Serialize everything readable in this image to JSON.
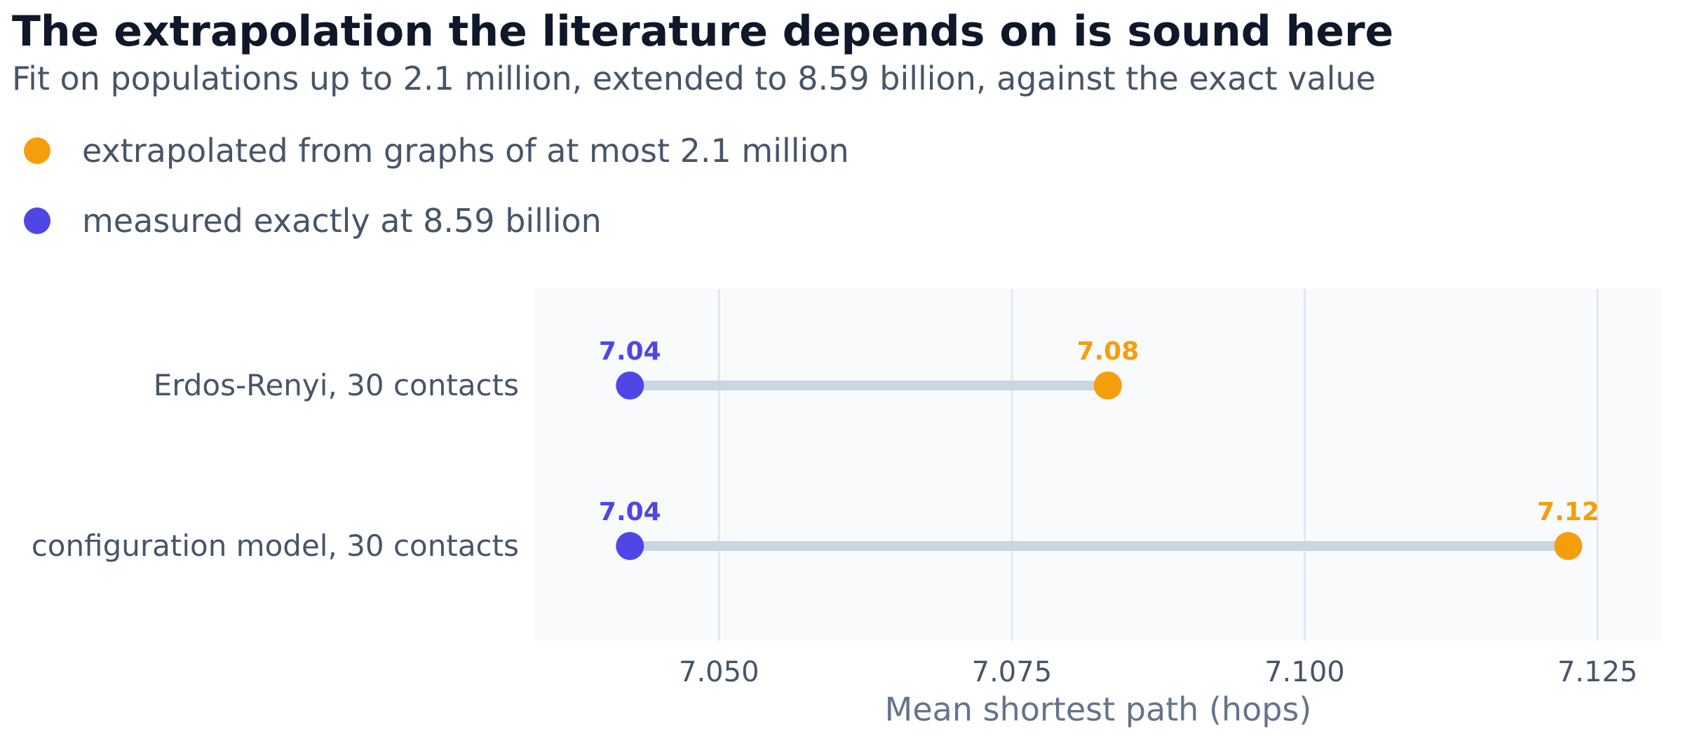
{
  "chart_data": {
    "type": "dumbbell",
    "title": "The extrapolation the literature depends on is sound here",
    "subtitle": "Fit on populations up to 2.1 million, extended to 8.59 billion, against the exact value",
    "xlabel": "Mean shortest path (hops)",
    "ylabel": "",
    "xlim": [
      7.0343,
      7.1305
    ],
    "xticks": [
      7.05,
      7.075,
      7.1,
      7.125
    ],
    "xtick_labels": [
      "7.050",
      "7.075",
      "7.100",
      "7.125"
    ],
    "grid": true,
    "legend_position": "top-left",
    "categories": [
      "Erdos-Renyi, 30 contacts",
      "configuration model, 30 contacts"
    ],
    "series": [
      {
        "name": "extrapolated from graphs of at most 2.1 million",
        "color": "#f59e0b",
        "values": [
          7.0832,
          7.1225
        ],
        "labels": [
          "7.08",
          "7.12"
        ]
      },
      {
        "name": "measured exactly at 8.59 billion",
        "color": "#4f46e5",
        "values": [
          7.0424,
          7.0424
        ],
        "labels": [
          "7.04",
          "7.04"
        ]
      }
    ],
    "colors": {
      "connector": "#cbd5e1",
      "plot_background": "#f8fafc",
      "gridline": "#e2e8f0",
      "title": "#0f172a",
      "text": "#475569",
      "axis_label": "#64748b"
    }
  }
}
